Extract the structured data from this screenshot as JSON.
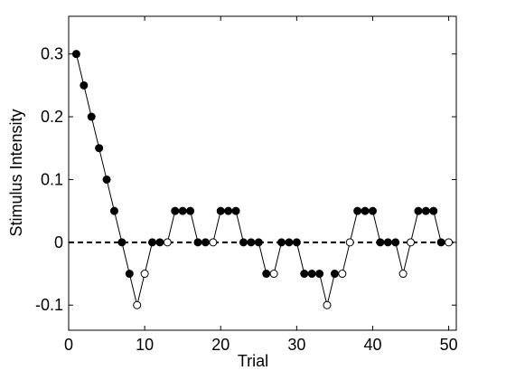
{
  "chart_data": {
    "type": "line",
    "xlabel": "Trial",
    "ylabel": "Stimulus Intensity",
    "x": [
      1,
      2,
      3,
      4,
      5,
      6,
      7,
      8,
      9,
      10,
      11,
      12,
      13,
      14,
      15,
      16,
      17,
      18,
      19,
      20,
      21,
      22,
      23,
      24,
      25,
      26,
      27,
      28,
      29,
      30,
      31,
      32,
      33,
      34,
      35,
      36,
      37,
      38,
      39,
      40,
      41,
      42,
      43,
      44,
      45,
      46,
      47,
      48,
      49,
      50
    ],
    "series": [
      {
        "color": "#000000",
        "values": [
          0.3,
          0.25,
          0.2,
          0.15,
          0.1,
          0.05,
          0,
          -0.05,
          -0.1,
          -0.05,
          0,
          0,
          0,
          0.05,
          0.05,
          0.05,
          0,
          0,
          0,
          0.05,
          0.05,
          0.05,
          0,
          0,
          0,
          -0.05,
          -0.05,
          0,
          0,
          0,
          -0.05,
          -0.05,
          -0.05,
          -0.1,
          -0.05,
          -0.05,
          0,
          0.05,
          0.05,
          0.05,
          0,
          0,
          0,
          -0.05,
          0,
          0.05,
          0.05,
          0.05,
          0,
          0
        ],
        "marker_fill": [
          "#000000",
          "#000000",
          "#000000",
          "#000000",
          "#000000",
          "#000000",
          "#000000",
          "#000000",
          "#ffffff",
          "#ffffff",
          "#000000",
          "#000000",
          "#ffffff",
          "#000000",
          "#000000",
          "#000000",
          "#000000",
          "#000000",
          "#ffffff",
          "#000000",
          "#000000",
          "#000000",
          "#000000",
          "#000000",
          "#000000",
          "#000000",
          "#ffffff",
          "#000000",
          "#000000",
          "#000000",
          "#000000",
          "#000000",
          "#000000",
          "#ffffff",
          "#000000",
          "#ffffff",
          "#ffffff",
          "#000000",
          "#000000",
          "#000000",
          "#000000",
          "#000000",
          "#000000",
          "#ffffff",
          "#ffffff",
          "#000000",
          "#000000",
          "#000000",
          "#000000",
          "#ffffff"
        ]
      }
    ],
    "hline": 0,
    "xlim": [
      0,
      51
    ],
    "xticks": [
      0,
      10,
      20,
      30,
      40,
      50
    ],
    "ylim": [
      -0.14,
      0.36
    ],
    "yticks": [
      -0.1,
      0,
      0.1,
      0.2,
      0.3
    ],
    "grid": false
  }
}
